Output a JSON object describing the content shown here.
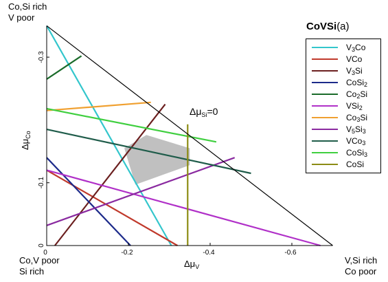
{
  "corners": {
    "top_left": [
      "Co,Si rich",
      "V poor"
    ],
    "bottom_left": [
      "Co,V poor",
      "Si rich"
    ],
    "bottom_right": [
      "V,Si rich",
      "Co poor"
    ]
  },
  "chart_data": {
    "type": "line",
    "title": "CoVSi",
    "subtitle": "(a)",
    "xlabel": "Δμ",
    "xlabel_sub": "V",
    "ylabel": "Δμ",
    "ylabel_sub": "Co",
    "xlim": [
      0,
      -0.7
    ],
    "ylim": [
      0,
      -0.35
    ],
    "x_ticks": [
      {
        "value": 0,
        "label": "0"
      },
      {
        "value": -0.2,
        "label": "-0.2"
      },
      {
        "value": -0.4,
        "label": "-0.4"
      },
      {
        "value": -0.6,
        "label": "-0.6"
      }
    ],
    "y_ticks": [
      {
        "value": 0,
        "label": "0"
      },
      {
        "value": -0.1,
        "label": "-0.1"
      },
      {
        "value": -0.3,
        "label": "-0.3"
      }
    ],
    "annotation": {
      "text": "Δμ",
      "sub": "Si",
      "suffix": "=0"
    },
    "boundary": [
      [
        0,
        -0.35
      ],
      [
        0,
        0
      ],
      [
        -0.7,
        0
      ]
    ],
    "series": [
      {
        "name": "V3Co",
        "label_parts": [
          "V",
          "3",
          "Co"
        ],
        "color": "#33c6cc",
        "points": [
          [
            0,
            -0.35
          ],
          [
            -0.305,
            0
          ]
        ]
      },
      {
        "name": "VCo",
        "label_parts": [
          "VCo"
        ],
        "color": "#c0392b",
        "points": [
          [
            0,
            -0.12
          ],
          [
            -0.32,
            0
          ]
        ]
      },
      {
        "name": "V3Si",
        "label_parts": [
          "V",
          "3",
          "Si"
        ],
        "color": "#6b1f1f",
        "points": [
          [
            -0.02,
            0
          ],
          [
            -0.29,
            -0.225
          ]
        ]
      },
      {
        "name": "CoSi2",
        "label_parts": [
          "CoSi",
          "2"
        ],
        "color": "#1c2a8a",
        "points": [
          [
            0,
            -0.14
          ],
          [
            -0.205,
            0
          ]
        ]
      },
      {
        "name": "Co2Si",
        "label_parts": [
          "Co",
          "2",
          "Si"
        ],
        "color": "#1a6b2a",
        "points": [
          [
            0,
            -0.265
          ],
          [
            -0.085,
            -0.302
          ]
        ]
      },
      {
        "name": "VSi2",
        "label_parts": [
          "VSi",
          "2"
        ],
        "color": "#b030c8",
        "points": [
          [
            0,
            -0.12
          ],
          [
            -0.67,
            0
          ]
        ]
      },
      {
        "name": "Co3Si",
        "label_parts": [
          "Co",
          "3",
          "Si"
        ],
        "color": "#f0a030",
        "points": [
          [
            0,
            -0.215
          ],
          [
            -0.255,
            -0.228
          ]
        ]
      },
      {
        "name": "V5Si3",
        "label_parts": [
          "V",
          "5",
          "Si",
          "3"
        ],
        "color": "#8a2aa0",
        "points": [
          [
            0,
            -0.032
          ],
          [
            -0.46,
            -0.14
          ]
        ]
      },
      {
        "name": "VCo3",
        "label_parts": [
          "VCo",
          "3"
        ],
        "color": "#1f5c4a",
        "points": [
          [
            0,
            -0.185
          ],
          [
            -0.5,
            -0.115
          ]
        ]
      },
      {
        "name": "CoSi3",
        "label_parts": [
          "CoSi",
          "3"
        ],
        "color": "#3fcf3f",
        "points": [
          [
            0,
            -0.218
          ],
          [
            -0.415,
            -0.165
          ]
        ]
      },
      {
        "name": "CoSi",
        "label_parts": [
          "CoSi"
        ],
        "color": "#8c8c14",
        "points": [
          [
            -0.345,
            0
          ],
          [
            -0.345,
            -0.193
          ]
        ]
      }
    ],
    "shaded_region": {
      "color": "#c0c0c0",
      "points": [
        [
          -0.19,
          -0.155
        ],
        [
          -0.244,
          -0.176
        ],
        [
          -0.35,
          -0.155
        ],
        [
          -0.35,
          -0.128
        ],
        [
          -0.217,
          -0.097
        ]
      ]
    }
  }
}
